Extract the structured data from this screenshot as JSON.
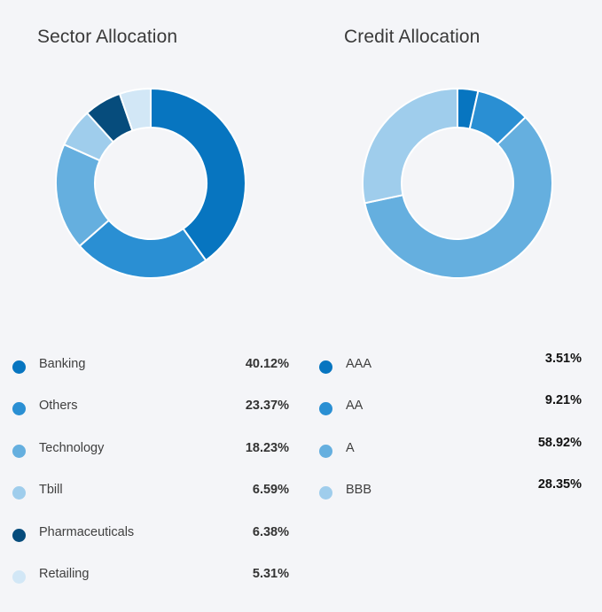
{
  "chart_data": [
    {
      "type": "pie",
      "title": "Sector Allocation",
      "categories": [
        "Banking",
        "Others",
        "Technology",
        "Tbill",
        "Pharmaceuticals",
        "Retailing"
      ],
      "values": [
        40.12,
        23.37,
        18.23,
        6.59,
        6.38,
        5.31
      ],
      "labels": [
        "40.12%",
        "23.37%",
        "18.23%",
        "6.59%",
        "6.38%",
        "5.31%"
      ],
      "colors": [
        "#0775c0",
        "#2a8fd3",
        "#65afdf",
        "#9fcdec",
        "#064c7c",
        "#d2e7f6"
      ],
      "legend_position": "bottom"
    },
    {
      "type": "pie",
      "title": "Credit Allocation",
      "categories": [
        "AAA",
        "AA",
        "A",
        "BBB"
      ],
      "values": [
        3.51,
        9.21,
        58.92,
        28.35
      ],
      "labels": [
        "3.51%",
        "9.21%",
        "58.92%",
        "28.35%"
      ],
      "colors": [
        "#0775c0",
        "#2a8fd3",
        "#65afdf",
        "#9fcdec"
      ],
      "legend_position": "bottom"
    }
  ]
}
